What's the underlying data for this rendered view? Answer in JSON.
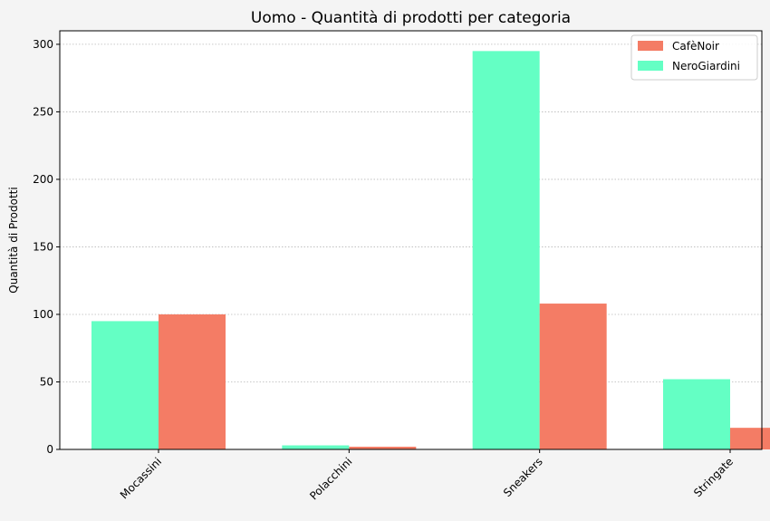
{
  "chart_data": {
    "type": "bar",
    "title": "Uomo - Quantità di prodotti per categoria",
    "xlabel": "",
    "ylabel": "Quantità di Prodotti",
    "categories": [
      "Mocassini",
      "Polacchini",
      "Sneakers",
      "Stringate"
    ],
    "series": [
      {
        "name": "CafèNoir",
        "color": "#f47c65",
        "values": [
          100,
          2,
          108,
          16
        ]
      },
      {
        "name": "NeroGiardini",
        "color": "#64ffc4",
        "values": [
          95,
          3,
          295,
          52
        ]
      }
    ],
    "ylim": [
      0,
      310
    ],
    "yticks": [
      0,
      50,
      100,
      150,
      200,
      250,
      300
    ],
    "grid": "y-dotted",
    "legend": "top-right"
  }
}
